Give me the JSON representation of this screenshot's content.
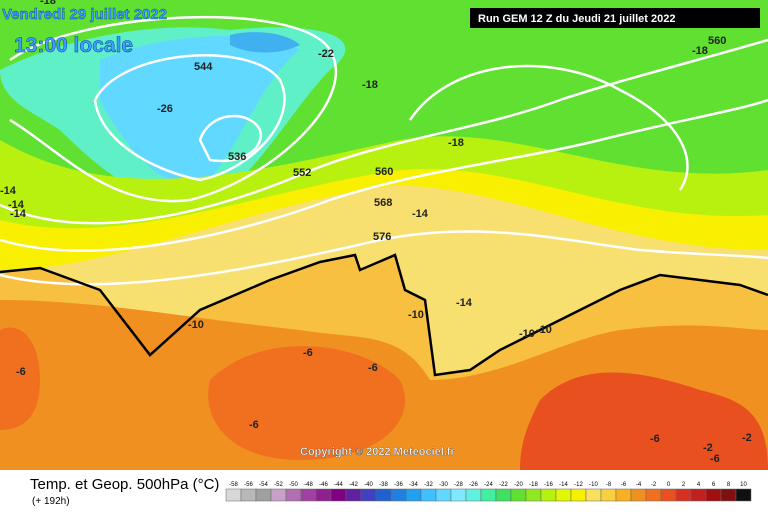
{
  "header": {
    "date": "Vendredi 29 juillet 2022",
    "time": "13:00 locale",
    "run": "Run GEM 12 Z du Jeudi 21 juillet 2022"
  },
  "copyright": "Copyright © 2022 Meteociel.fr",
  "footer": {
    "title": "Temp. et Geop. 500hPa (°C)",
    "range": "(+ 192h)"
  },
  "map_labels": [
    "-18",
    "560",
    "-22",
    "544",
    "-18",
    "-18",
    "-26",
    "536",
    "-18",
    "552",
    "560",
    "568",
    "-14",
    "-14",
    "-14",
    "-14",
    "576",
    "-14",
    "-10",
    "-10",
    "-10",
    "-10",
    "-6",
    "-6",
    "-6",
    "-6",
    "-6",
    "-6",
    "-2",
    "-2"
  ],
  "legend": {
    "values": [
      -58,
      -56,
      -54,
      -52,
      -50,
      -48,
      -46,
      -44,
      -42,
      -40,
      -38,
      -36,
      -34,
      -32,
      -30,
      -28,
      -26,
      -24,
      -22,
      -20,
      -18,
      -16,
      -14,
      -12,
      -10,
      -8,
      -6,
      -4,
      -2,
      0,
      2,
      4,
      6,
      8,
      10
    ],
    "colors": [
      "#d8d8d8",
      "#b8b8b8",
      "#a0a0a0",
      "#c8a0c8",
      "#b070b0",
      "#a040a0",
      "#902090",
      "#800080",
      "#6020a0",
      "#4040c0",
      "#2060d0",
      "#2080e0",
      "#20a0f0",
      "#40c0ff",
      "#60d8ff",
      "#80e8ff",
      "#60f0e0",
      "#40f0a0",
      "#40e060",
      "#60e030",
      "#90e820",
      "#b8f010",
      "#e0f800",
      "#f8f000",
      "#f8e060",
      "#f8d040",
      "#f8b020",
      "#f09020",
      "#f07020",
      "#e85020",
      "#d83020",
      "#c02020",
      "#a01010",
      "#801010",
      "#101010"
    ]
  }
}
